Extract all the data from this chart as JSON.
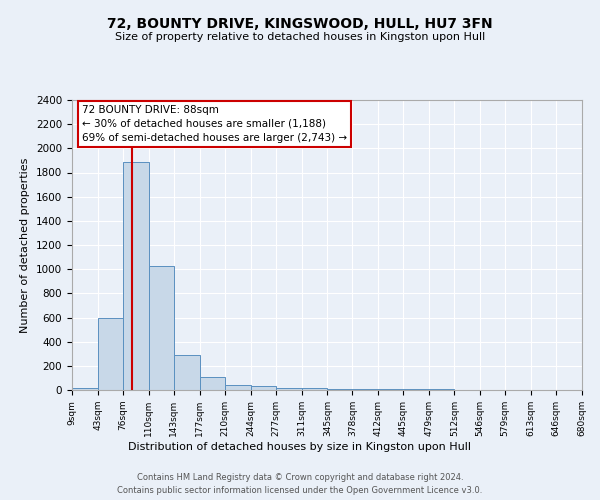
{
  "title": "72, BOUNTY DRIVE, KINGSWOOD, HULL, HU7 3FN",
  "subtitle": "Size of property relative to detached houses in Kingston upon Hull",
  "xlabel": "Distribution of detached houses by size in Kingston upon Hull",
  "ylabel": "Number of detached properties",
  "footer_line1": "Contains HM Land Registry data © Crown copyright and database right 2024.",
  "footer_line2": "Contains public sector information licensed under the Open Government Licence v3.0.",
  "bar_edges": [
    9,
    43,
    76,
    110,
    143,
    177,
    210,
    244,
    277,
    311,
    345,
    378,
    412,
    445,
    479,
    512,
    546,
    579,
    613,
    646,
    680
  ],
  "bar_heights": [
    20,
    600,
    1890,
    1030,
    290,
    110,
    45,
    30,
    20,
    15,
    12,
    10,
    8,
    6,
    5,
    4,
    3,
    2,
    2,
    1
  ],
  "bar_color": "#c8d8e8",
  "bar_edgecolor": "#5a90c0",
  "property_size": 88,
  "vline_color": "#cc0000",
  "annotation_line1": "72 BOUNTY DRIVE: 88sqm",
  "annotation_line2": "← 30% of detached houses are smaller (1,188)",
  "annotation_line3": "69% of semi-detached houses are larger (2,743) →",
  "annotation_box_color": "#ffffff",
  "annotation_box_edgecolor": "#cc0000",
  "ylim": [
    0,
    2400
  ],
  "yticks": [
    0,
    200,
    400,
    600,
    800,
    1000,
    1200,
    1400,
    1600,
    1800,
    2000,
    2200,
    2400
  ],
  "tick_labels": [
    "9sqm",
    "43sqm",
    "76sqm",
    "110sqm",
    "143sqm",
    "177sqm",
    "210sqm",
    "244sqm",
    "277sqm",
    "311sqm",
    "345sqm",
    "378sqm",
    "412sqm",
    "445sqm",
    "479sqm",
    "512sqm",
    "546sqm",
    "579sqm",
    "613sqm",
    "646sqm",
    "680sqm"
  ],
  "bg_color": "#eaf0f8",
  "plot_bg_color": "#eaf0f8"
}
